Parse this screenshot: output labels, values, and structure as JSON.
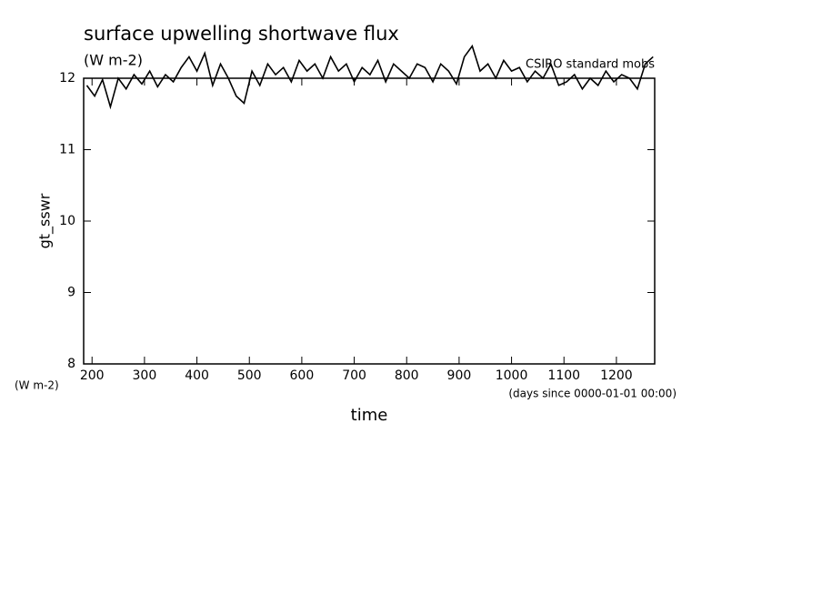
{
  "chart_data": {
    "type": "line",
    "title": "surface upwelling shortwave flux",
    "subtitle": "(W m-2)",
    "annotation": "CSIRO standard mobs",
    "y_label": "gt_sswr",
    "y_units": "(W m-2)",
    "x_label": "time",
    "x_units": "(days since 0000-01-01 00:00)",
    "color": "#000000",
    "x": [
      190,
      205,
      220,
      235,
      250,
      265,
      280,
      295,
      310,
      325,
      340,
      355,
      370,
      385,
      400,
      415,
      430,
      445,
      460,
      475,
      490,
      505,
      520,
      535,
      550,
      565,
      580,
      595,
      610,
      625,
      640,
      655,
      670,
      685,
      700,
      715,
      730,
      745,
      760,
      775,
      790,
      805,
      820,
      835,
      850,
      865,
      880,
      895,
      910,
      925,
      940,
      955,
      970,
      985,
      1000,
      1015,
      1030,
      1045,
      1060,
      1075,
      1090,
      1105,
      1120,
      1135,
      1150,
      1165,
      1180,
      1195,
      1210,
      1225,
      1240,
      1255,
      1270
    ],
    "values": [
      11.9,
      11.75,
      11.98,
      11.6,
      12.0,
      11.85,
      12.05,
      11.92,
      12.1,
      11.88,
      12.05,
      11.95,
      12.15,
      12.3,
      12.1,
      12.35,
      11.9,
      12.2,
      12.0,
      11.75,
      11.65,
      12.1,
      11.9,
      12.2,
      12.05,
      12.15,
      11.95,
      12.25,
      12.1,
      12.2,
      12.0,
      12.3,
      12.1,
      12.2,
      11.95,
      12.15,
      12.05,
      12.25,
      11.95,
      12.2,
      12.1,
      12.0,
      12.2,
      12.15,
      11.95,
      12.2,
      12.1,
      11.92,
      12.3,
      12.45,
      12.1,
      12.2,
      12.0,
      12.25,
      12.1,
      12.15,
      11.95,
      12.1,
      12.0,
      12.2,
      11.9,
      11.95,
      12.05,
      11.85,
      12.0,
      11.9,
      12.1,
      11.95,
      12.05,
      12.0,
      11.85,
      12.2,
      12.3
    ],
    "xlim": [
      184,
      1273
    ],
    "ylim": [
      8,
      12
    ],
    "xticks": [
      200,
      300,
      400,
      500,
      600,
      700,
      800,
      900,
      1000,
      1100,
      1200
    ],
    "yticks": [
      8,
      9,
      10,
      11,
      12
    ]
  }
}
